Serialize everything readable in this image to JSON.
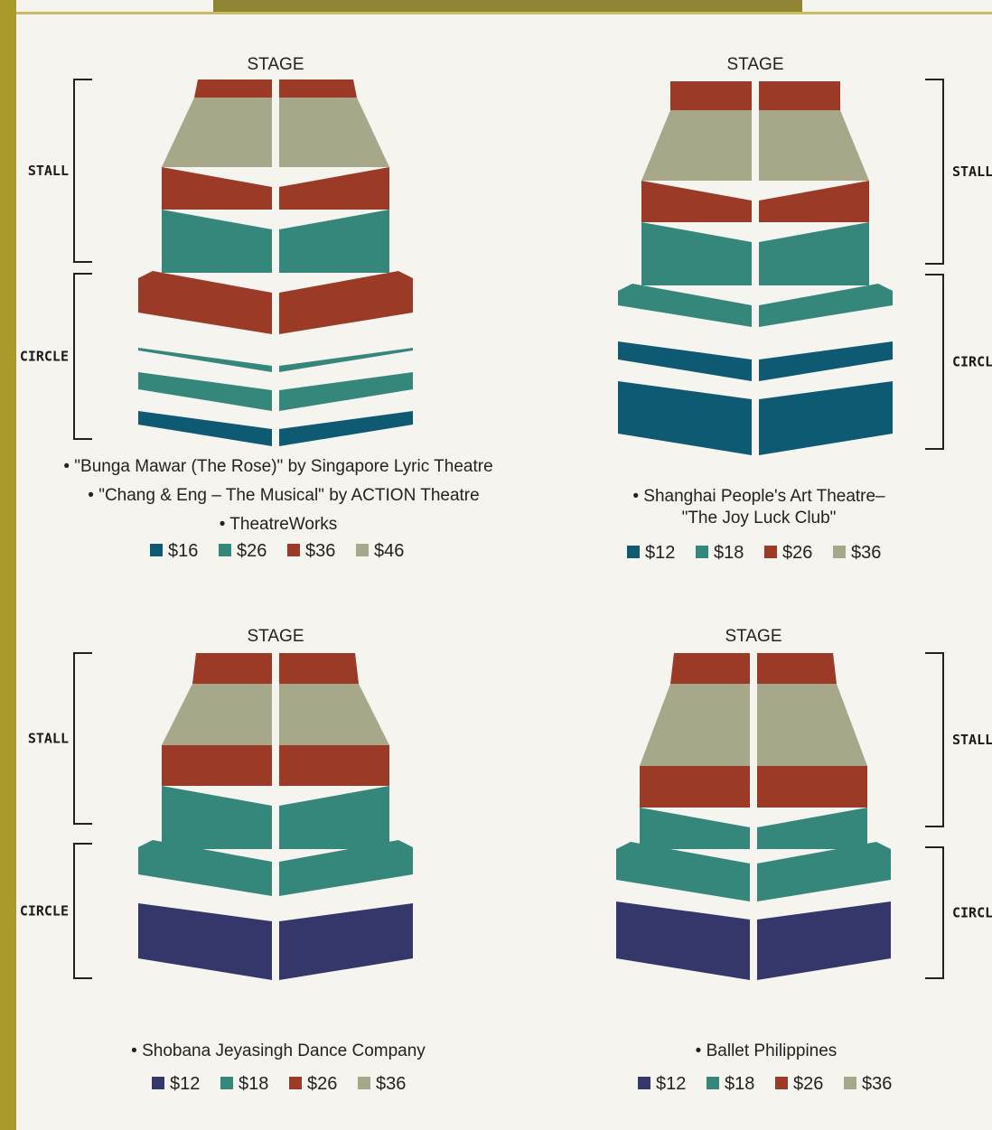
{
  "colors": {
    "blue_dark": "#0e5a73",
    "navy": "#35366a",
    "teal": "#35877c",
    "rust": "#9b3a27",
    "khaki": "#a7a88a"
  },
  "stage_label": "STAGE",
  "section_labels": {
    "stall": "STALL",
    "circle": "CIRCLE"
  },
  "maps": [
    {
      "id": "map-top-left",
      "captions": [
        "• \"Bunga Mawar (The Rose)\" by Singapore Lyric Theatre",
        "• \"Chang & Eng – The Musical\" by ACTION Theatre",
        "• TheatreWorks"
      ],
      "legend": [
        {
          "label": "$16",
          "color": "#0e5a73"
        },
        {
          "label": "$26",
          "color": "#35877c"
        },
        {
          "label": "$36",
          "color": "#9b3a27"
        },
        {
          "label": "$46",
          "color": "#a7a88a"
        }
      ]
    },
    {
      "id": "map-top-right",
      "captions": [
        "• Shanghai People's Art Theatre–",
        "\"The Joy Luck Club\""
      ],
      "legend": [
        {
          "label": "$12",
          "color": "#0e5a73"
        },
        {
          "label": "$18",
          "color": "#35877c"
        },
        {
          "label": "$26",
          "color": "#9b3a27"
        },
        {
          "label": "$36",
          "color": "#a7a88a"
        }
      ]
    },
    {
      "id": "map-bottom-left",
      "captions": [
        "• Shobana Jeyasingh Dance Company"
      ],
      "legend": [
        {
          "label": "$12",
          "color": "#35366a"
        },
        {
          "label": "$18",
          "color": "#35877c"
        },
        {
          "label": "$26",
          "color": "#9b3a27"
        },
        {
          "label": "$36",
          "color": "#a7a88a"
        }
      ]
    },
    {
      "id": "map-bottom-right",
      "captions": [
        "• Ballet Philippines"
      ],
      "legend": [
        {
          "label": "$12",
          "color": "#35366a"
        },
        {
          "label": "$18",
          "color": "#35877c"
        },
        {
          "label": "$26",
          "color": "#9b3a27"
        },
        {
          "label": "$36",
          "color": "#a7a88a"
        }
      ]
    }
  ]
}
